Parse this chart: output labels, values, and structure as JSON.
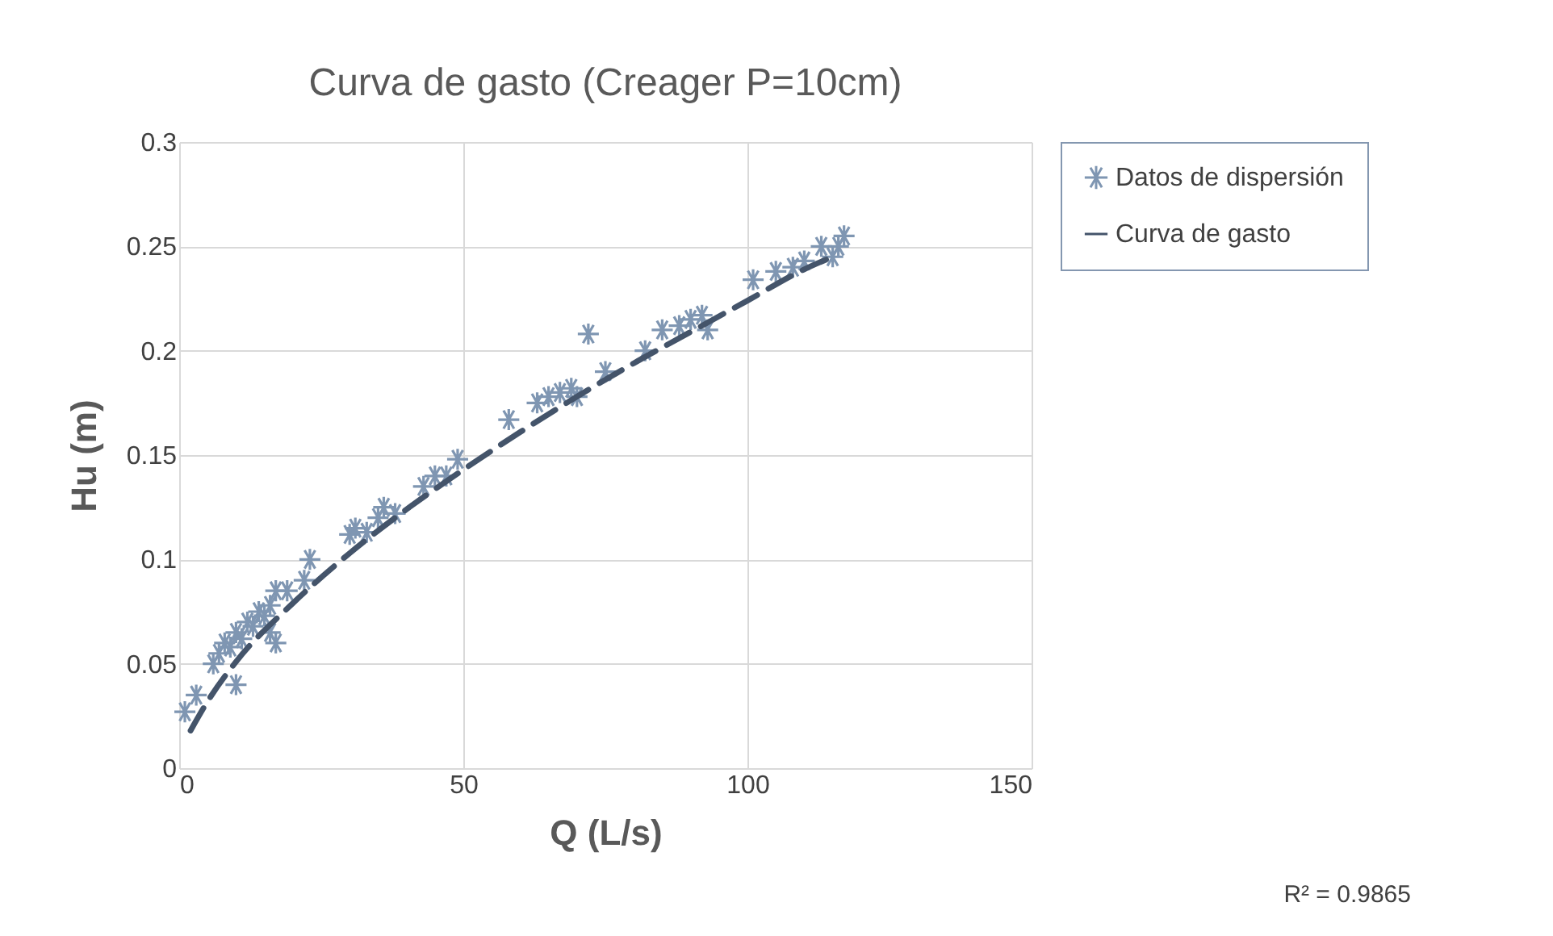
{
  "chart_data": {
    "type": "scatter",
    "title": "Curva de gasto (Creager P=10cm)",
    "xlabel": "Q (L/s)",
    "ylabel": "Hu (m)",
    "xlim": [
      0,
      150
    ],
    "xticks": [
      0,
      50,
      100,
      150
    ],
    "ylim": [
      0,
      0.3
    ],
    "yticks": [
      0,
      0.05,
      0.1,
      0.15,
      0.2,
      0.25,
      0.3
    ],
    "grid": true,
    "legend": "right",
    "annotations": [
      "R² = 0.9865"
    ],
    "series": [
      {
        "name": "Datos de dispersión",
        "color": "#7f96b2",
        "marker": "cross",
        "x": [
          1,
          3,
          6,
          7,
          8,
          9,
          10,
          10,
          11,
          12,
          13,
          14,
          15,
          16,
          17,
          17,
          16,
          19,
          22,
          23,
          30,
          31,
          33,
          35,
          36,
          38,
          43,
          45,
          47,
          49,
          58,
          63,
          65,
          67,
          69,
          70,
          72,
          75,
          82,
          85,
          88,
          90,
          92,
          93,
          101,
          105,
          108,
          110,
          116,
          117,
          113,
          115
        ],
        "values": [
          0.027,
          0.035,
          0.05,
          0.055,
          0.06,
          0.058,
          0.04,
          0.065,
          0.062,
          0.07,
          0.068,
          0.075,
          0.073,
          0.078,
          0.06,
          0.085,
          0.065,
          0.085,
          0.09,
          0.1,
          0.112,
          0.115,
          0.113,
          0.12,
          0.125,
          0.122,
          0.135,
          0.14,
          0.14,
          0.148,
          0.167,
          0.175,
          0.178,
          0.18,
          0.182,
          0.178,
          0.208,
          0.19,
          0.2,
          0.21,
          0.212,
          0.215,
          0.217,
          0.21,
          0.234,
          0.238,
          0.24,
          0.243,
          0.25,
          0.255,
          0.25,
          0.245
        ]
      },
      {
        "name": "Curva de gasto",
        "type": "line",
        "color": "#44546a",
        "line_style": "dashed",
        "marker": "none",
        "x": [
          2,
          5,
          10,
          20,
          30,
          40,
          50,
          60,
          70,
          80,
          90,
          100,
          110,
          115
        ],
        "values": [
          0.018,
          0.032,
          0.051,
          0.079,
          0.103,
          0.124,
          0.143,
          0.161,
          0.178,
          0.194,
          0.209,
          0.224,
          0.239,
          0.245
        ]
      }
    ]
  }
}
